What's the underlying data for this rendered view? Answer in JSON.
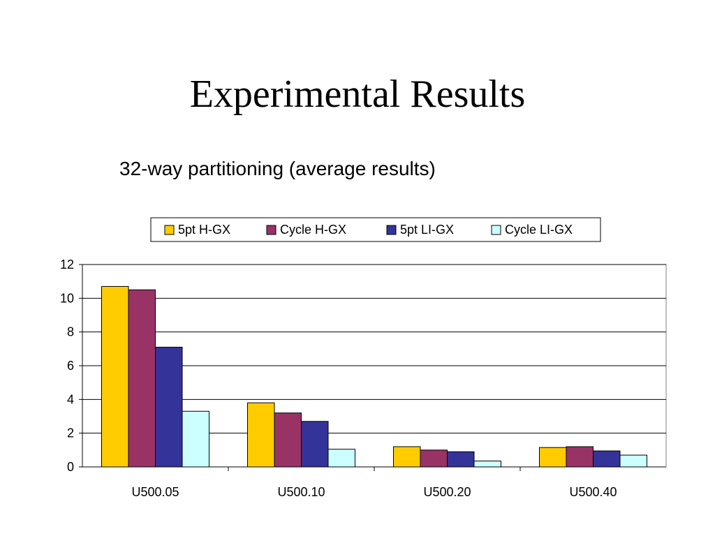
{
  "slide": {
    "title": "Experimental Results"
  },
  "chart_data": {
    "type": "bar",
    "title": "32-way partitioning (average results)",
    "xlabel": "",
    "ylabel": "",
    "categories": [
      "U500.05",
      "U500.10",
      "U500.20",
      "U500.40"
    ],
    "series": [
      {
        "name": "5pt H-GX",
        "color": "#FFCC00",
        "values": [
          10.7,
          3.8,
          1.2,
          1.15
        ]
      },
      {
        "name": "Cycle H-GX",
        "color": "#993366",
        "values": [
          10.5,
          3.2,
          1.0,
          1.2
        ]
      },
      {
        "name": "5pt LI-GX",
        "color": "#333399",
        "values": [
          7.1,
          2.7,
          0.9,
          0.95
        ]
      },
      {
        "name": "Cycle LI-GX",
        "color": "#CCFFFF",
        "values": [
          3.3,
          1.05,
          0.35,
          0.7
        ]
      }
    ],
    "ylim": [
      0,
      12
    ],
    "yticks": [
      0,
      2,
      4,
      6,
      8,
      10,
      12
    ],
    "grid": true,
    "legend_position": "top"
  }
}
